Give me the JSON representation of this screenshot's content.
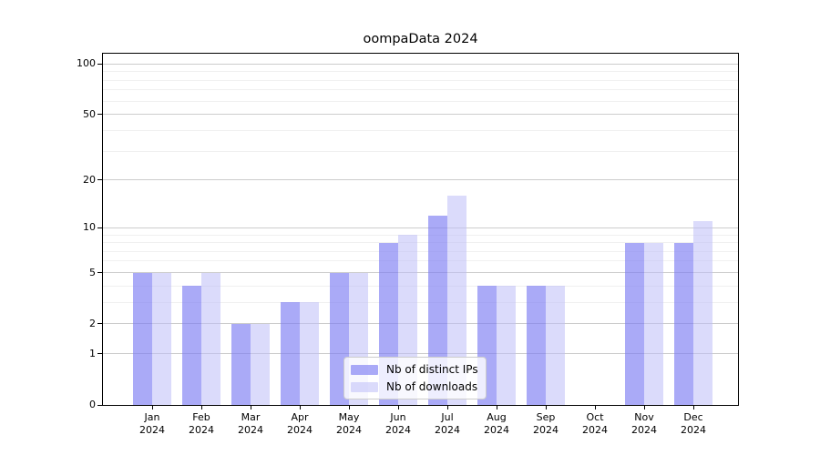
{
  "chart_data": {
    "type": "bar",
    "title": "oompaData 2024",
    "categories": [
      "Jan",
      "Feb",
      "Mar",
      "Apr",
      "May",
      "Jun",
      "Jul",
      "Aug",
      "Sep",
      "Oct",
      "Nov",
      "Dec"
    ],
    "x_year_label": "2024",
    "series": [
      {
        "name": "Nb of distinct IPs",
        "color": "rgba(122,122,243,0.64)",
        "values": [
          5,
          4,
          2,
          3,
          5,
          8,
          12,
          4,
          4,
          0,
          8,
          8
        ]
      },
      {
        "name": "Nb of downloads",
        "color": "rgba(190,190,248,0.55)",
        "values": [
          5,
          5,
          2,
          3,
          5,
          9,
          16,
          4,
          4,
          0,
          8,
          11
        ]
      }
    ],
    "y_scale": "log1p",
    "ylim": [
      0,
      115
    ],
    "y_major_ticks": [
      0,
      1,
      2,
      5,
      10,
      20,
      50,
      100
    ],
    "y_minor_gridlines": [
      3,
      4,
      6,
      7,
      8,
      9,
      30,
      40,
      60,
      70,
      80,
      90
    ],
    "xlabel": "",
    "ylabel": "",
    "grid": true,
    "legend_position": "lower center",
    "colors": {
      "major_grid": "#cccccc",
      "minor_grid": "#f0f0f0",
      "spine": "#000000",
      "text": "#000000"
    }
  }
}
